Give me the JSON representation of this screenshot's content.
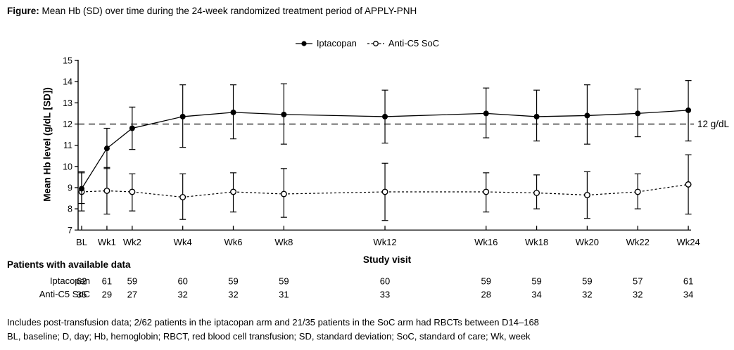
{
  "figure": {
    "label": "Figure:",
    "title": " Mean Hb (SD) over time during the 24-week randomized treatment period of APPLY-PNH"
  },
  "legend": {
    "items": [
      {
        "label": "Iptacopan",
        "marker": "filled-circle-solid-line"
      },
      {
        "label": "Anti-C5 SoC",
        "marker": "open-circle-dashed-line"
      }
    ]
  },
  "chart_data": {
    "type": "line",
    "title": "Mean Hb (SD) over time during the 24-week randomized treatment period of APPLY-PNH",
    "xlabel": "Study visit",
    "ylabel": "Mean Hb level (g/dL [SD])",
    "ylim": [
      7,
      15
    ],
    "yticks": [
      7,
      8,
      9,
      10,
      11,
      12,
      13,
      14,
      15
    ],
    "x_weeks": [
      0,
      1,
      2,
      4,
      6,
      8,
      12,
      16,
      18,
      20,
      22,
      24
    ],
    "categories": [
      "BL",
      "Wk1",
      "Wk2",
      "Wk4",
      "Wk6",
      "Wk8",
      "Wk12",
      "Wk16",
      "Wk18",
      "Wk20",
      "Wk22",
      "Wk24"
    ],
    "grid": false,
    "legend_position": "top-center",
    "error_bars": "SD",
    "reference_line": {
      "y": 12,
      "label": "12 g/dL"
    },
    "series": [
      {
        "name": "Anti-C5 SoC",
        "line_style": "dashed",
        "marker": "open-circle",
        "mean": [
          8.8,
          8.85,
          8.8,
          8.55,
          8.8,
          8.7,
          8.8,
          8.8,
          8.75,
          8.65,
          8.8,
          9.15
        ],
        "sd_lo": [
          7.9,
          7.75,
          7.9,
          7.5,
          7.85,
          7.6,
          7.45,
          7.85,
          8.0,
          7.55,
          8.0,
          7.75
        ],
        "sd_hi": [
          9.75,
          9.95,
          9.65,
          9.65,
          9.7,
          9.9,
          10.15,
          9.7,
          9.6,
          9.75,
          9.65,
          10.55
        ]
      },
      {
        "name": "Iptacopan",
        "line_style": "solid",
        "marker": "filled-circle",
        "mean": [
          8.95,
          10.85,
          11.8,
          12.35,
          12.55,
          12.45,
          12.35,
          12.5,
          12.35,
          12.4,
          12.5,
          12.65
        ],
        "sd_lo": [
          8.25,
          9.9,
          10.8,
          10.9,
          11.3,
          11.05,
          11.1,
          11.35,
          11.2,
          11.05,
          11.4,
          11.2
        ],
        "sd_hi": [
          9.7,
          11.8,
          12.8,
          13.85,
          13.85,
          13.9,
          13.6,
          13.7,
          13.6,
          13.85,
          13.65,
          14.05
        ]
      }
    ]
  },
  "patients_table": {
    "header": "Patients with available data",
    "rows": [
      {
        "label": "Iptacopan",
        "values": [
          62,
          61,
          59,
          60,
          59,
          59,
          60,
          59,
          59,
          59,
          57,
          61
        ]
      },
      {
        "label": "Anti-C5 SoC",
        "values": [
          35,
          29,
          27,
          32,
          32,
          31,
          33,
          28,
          34,
          32,
          32,
          34
        ]
      }
    ]
  },
  "footnotes": [
    "Includes post-transfusion data; 2/62 patients in the iptacopan arm and 21/35 patients in the SoC arm had RBCTs between D14–168",
    "BL, baseline; D, day; Hb, hemoglobin; RBCT, red blood cell transfusion; SD, standard deviation; SoC, standard of care; Wk, week"
  ],
  "colors": {
    "ink": "#000000",
    "background": "#ffffff"
  }
}
